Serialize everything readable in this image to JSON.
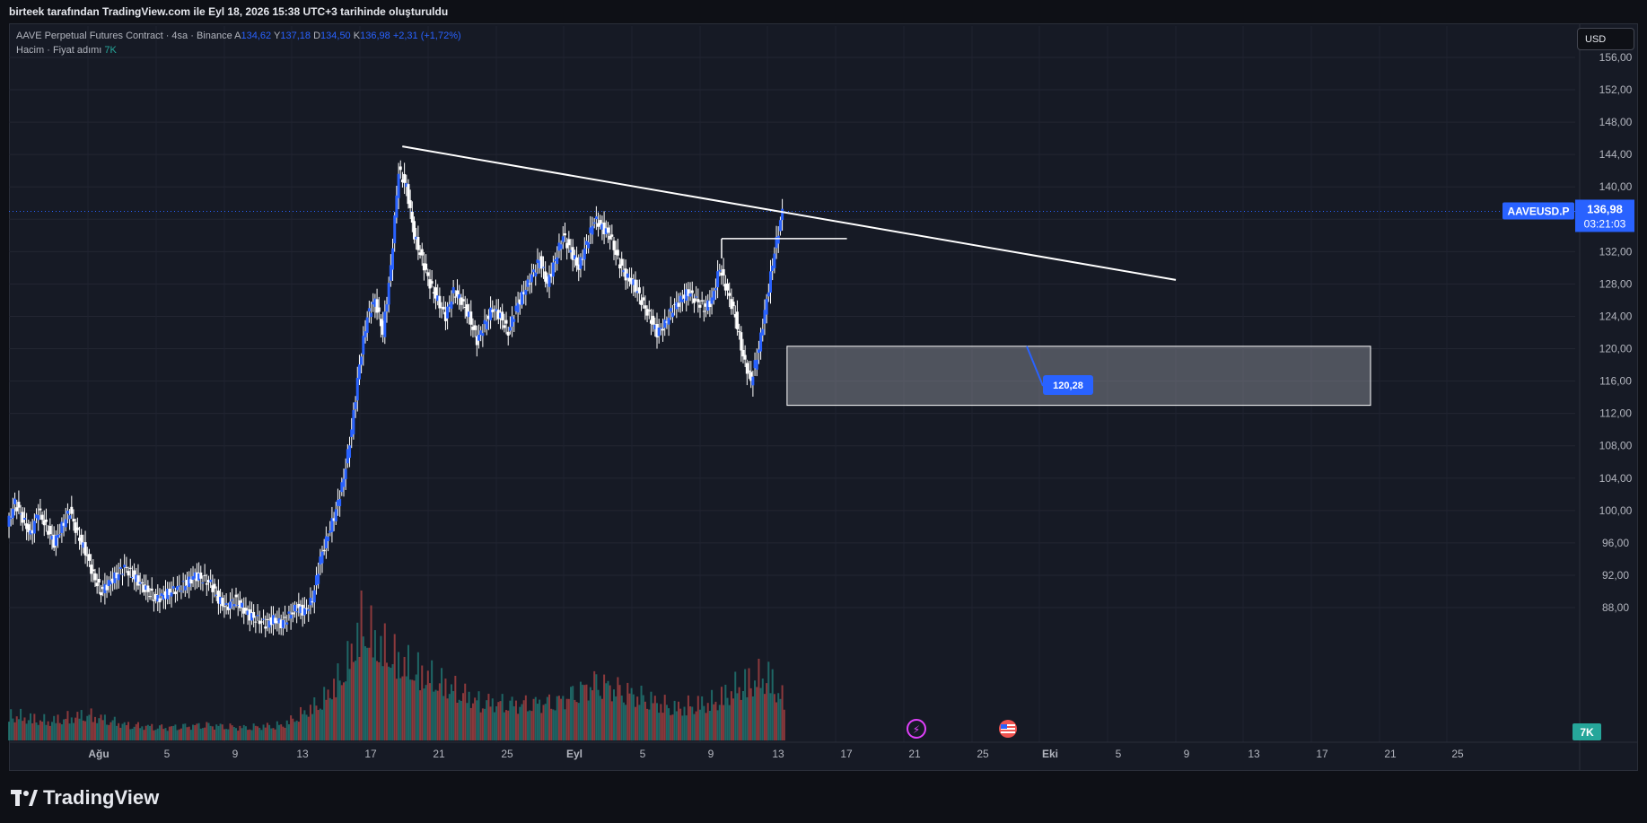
{
  "header": {
    "title": "birteek tarafından TradingView.com ile Eyl 18, 2026 15:38 UTC+3 tarihinde oluşturuldu"
  },
  "legend": {
    "symbol": "AAVE Perpetual Futures Contract · 4sa · Binance",
    "open_label": "A",
    "open": "134,62",
    "high_label": "Y",
    "high": "137,18",
    "low_label": "D",
    "low": "134,50",
    "close_label": "K",
    "close": "136,98",
    "change": "+2,31 (+1,72%)",
    "volume_label": "Hacim · Fiyat adımı",
    "volume_value": "7K"
  },
  "toolbar": {
    "currency": "USD"
  },
  "footer": {
    "brand": "TradingView"
  },
  "colors": {
    "background": "#161a25",
    "candle": "#2962ff",
    "up_volume": "#26a69a",
    "down_volume": "#ef5350",
    "price_tag": "#2962ff",
    "drawing": "#ffffff"
  },
  "chart_data": {
    "type": "candlestick",
    "y_ticks": [
      "156,00",
      "152,00",
      "148,00",
      "144,00",
      "140,00",
      "136,00",
      "132,00",
      "128,00",
      "124,00",
      "120,00",
      "116,00",
      "112,00",
      "108,00",
      "104,00",
      "100,00",
      "96,00",
      "92,00",
      "88,00"
    ],
    "ylim": [
      85,
      159
    ],
    "x_ticks": [
      "Ağu",
      "5",
      "9",
      "13",
      "17",
      "21",
      "25",
      "Eyl",
      "5",
      "9",
      "13",
      "17",
      "21",
      "25",
      "Eki",
      "5",
      "9",
      "13",
      "17",
      "21",
      "25"
    ],
    "grid": true,
    "last_price": {
      "symbol": "AAVEUSD.P",
      "value": "136,98",
      "countdown": "03:21:03"
    },
    "volume_badge": "7K",
    "price_series": [
      {
        "t": 0,
        "p": 98
      },
      {
        "t": 1,
        "p": 101
      },
      {
        "t": 2,
        "p": 99
      },
      {
        "t": 3,
        "p": 97
      },
      {
        "t": 4,
        "p": 100
      },
      {
        "t": 5,
        "p": 98
      },
      {
        "t": 6,
        "p": 96
      },
      {
        "t": 7,
        "p": 98
      },
      {
        "t": 8,
        "p": 100
      },
      {
        "t": 9,
        "p": 97
      },
      {
        "t": 10,
        "p": 95
      },
      {
        "t": 11,
        "p": 92
      },
      {
        "t": 12,
        "p": 90
      },
      {
        "t": 13,
        "p": 91
      },
      {
        "t": 14,
        "p": 92
      },
      {
        "t": 15,
        "p": 93
      },
      {
        "t": 16,
        "p": 92
      },
      {
        "t": 17,
        "p": 91
      },
      {
        "t": 18,
        "p": 90
      },
      {
        "t": 19,
        "p": 89
      },
      {
        "t": 20,
        "p": 89.5
      },
      {
        "t": 21,
        "p": 90
      },
      {
        "t": 22,
        "p": 90.5
      },
      {
        "t": 23,
        "p": 91
      },
      {
        "t": 24,
        "p": 92
      },
      {
        "t": 25,
        "p": 91.5
      },
      {
        "t": 26,
        "p": 91
      },
      {
        "t": 27,
        "p": 89
      },
      {
        "t": 28,
        "p": 88
      },
      {
        "t": 29,
        "p": 89
      },
      {
        "t": 30,
        "p": 88
      },
      {
        "t": 31,
        "p": 87
      },
      {
        "t": 32,
        "p": 86.5
      },
      {
        "t": 33,
        "p": 86
      },
      {
        "t": 34,
        "p": 86.5
      },
      {
        "t": 35,
        "p": 86
      },
      {
        "t": 36,
        "p": 87
      },
      {
        "t": 37,
        "p": 88
      },
      {
        "t": 38,
        "p": 87.5
      },
      {
        "t": 39,
        "p": 89
      },
      {
        "t": 40,
        "p": 94
      },
      {
        "t": 41,
        "p": 97
      },
      {
        "t": 42,
        "p": 100
      },
      {
        "t": 43,
        "p": 104
      },
      {
        "t": 44,
        "p": 110
      },
      {
        "t": 45,
        "p": 118
      },
      {
        "t": 46,
        "p": 124
      },
      {
        "t": 47,
        "p": 126
      },
      {
        "t": 48,
        "p": 122
      },
      {
        "t": 49,
        "p": 130
      },
      {
        "t": 50,
        "p": 142
      },
      {
        "t": 51,
        "p": 140
      },
      {
        "t": 52,
        "p": 134
      },
      {
        "t": 53,
        "p": 131
      },
      {
        "t": 54,
        "p": 128
      },
      {
        "t": 55,
        "p": 126
      },
      {
        "t": 56,
        "p": 124
      },
      {
        "t": 57,
        "p": 127
      },
      {
        "t": 58,
        "p": 126
      },
      {
        "t": 59,
        "p": 124
      },
      {
        "t": 60,
        "p": 121
      },
      {
        "t": 61,
        "p": 123
      },
      {
        "t": 62,
        "p": 125
      },
      {
        "t": 63,
        "p": 124
      },
      {
        "t": 64,
        "p": 122
      },
      {
        "t": 65,
        "p": 125
      },
      {
        "t": 66,
        "p": 127
      },
      {
        "t": 67,
        "p": 129
      },
      {
        "t": 68,
        "p": 131
      },
      {
        "t": 69,
        "p": 128
      },
      {
        "t": 70,
        "p": 131
      },
      {
        "t": 71,
        "p": 134
      },
      {
        "t": 72,
        "p": 132
      },
      {
        "t": 73,
        "p": 130
      },
      {
        "t": 74,
        "p": 133
      },
      {
        "t": 75,
        "p": 136
      },
      {
        "t": 76,
        "p": 135
      },
      {
        "t": 77,
        "p": 134
      },
      {
        "t": 78,
        "p": 131
      },
      {
        "t": 79,
        "p": 129
      },
      {
        "t": 80,
        "p": 128
      },
      {
        "t": 81,
        "p": 126
      },
      {
        "t": 82,
        "p": 124
      },
      {
        "t": 83,
        "p": 122
      },
      {
        "t": 84,
        "p": 123
      },
      {
        "t": 85,
        "p": 125
      },
      {
        "t": 86,
        "p": 126
      },
      {
        "t": 87,
        "p": 127
      },
      {
        "t": 88,
        "p": 126
      },
      {
        "t": 89,
        "p": 125
      },
      {
        "t": 90,
        "p": 126
      },
      {
        "t": 91,
        "p": 130
      },
      {
        "t": 92,
        "p": 127
      },
      {
        "t": 93,
        "p": 124
      },
      {
        "t": 94,
        "p": 119
      },
      {
        "t": 95,
        "p": 116
      },
      {
        "t": 96,
        "p": 120
      },
      {
        "t": 97,
        "p": 126
      },
      {
        "t": 98,
        "p": 132
      },
      {
        "t": 99,
        "p": 136.98
      }
    ],
    "volume_series": [
      {
        "t": 0,
        "v": 0.2
      },
      {
        "t": 5,
        "v": 0.15
      },
      {
        "t": 10,
        "v": 0.2
      },
      {
        "t": 15,
        "v": 0.12
      },
      {
        "t": 20,
        "v": 0.1
      },
      {
        "t": 25,
        "v": 0.12
      },
      {
        "t": 30,
        "v": 0.1
      },
      {
        "t": 35,
        "v": 0.12
      },
      {
        "t": 40,
        "v": 0.3
      },
      {
        "t": 43,
        "v": 0.55
      },
      {
        "t": 45,
        "v": 0.9
      },
      {
        "t": 47,
        "v": 0.75
      },
      {
        "t": 50,
        "v": 0.6
      },
      {
        "t": 55,
        "v": 0.45
      },
      {
        "t": 60,
        "v": 0.3
      },
      {
        "t": 65,
        "v": 0.28
      },
      {
        "t": 70,
        "v": 0.3
      },
      {
        "t": 75,
        "v": 0.45
      },
      {
        "t": 80,
        "v": 0.35
      },
      {
        "t": 85,
        "v": 0.25
      },
      {
        "t": 90,
        "v": 0.3
      },
      {
        "t": 94,
        "v": 0.45
      },
      {
        "t": 97,
        "v": 0.5
      },
      {
        "t": 99,
        "v": 0.3
      }
    ],
    "trendline": {
      "from": {
        "t": 50,
        "p": 145
      },
      "to": {
        "t": 149,
        "p": 128.5
      }
    },
    "horizontal_line": {
      "p": 133.6,
      "t_from": 91,
      "t_to": 107
    },
    "zone": {
      "p_top": 120.3,
      "p_bottom": 113,
      "t_from": 95,
      "t_to": 130
    },
    "zone_label": "120,28"
  }
}
